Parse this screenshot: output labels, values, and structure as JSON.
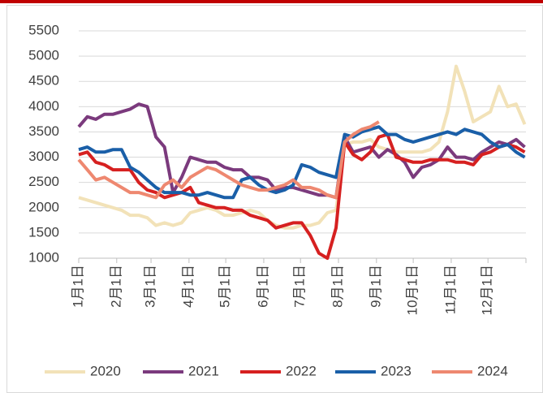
{
  "chart_data": {
    "type": "line",
    "x": [
      0,
      7,
      14,
      21,
      28,
      35,
      42,
      49,
      56,
      63,
      70,
      77,
      84,
      91,
      98,
      105,
      112,
      119,
      126,
      133,
      140,
      147,
      154,
      161,
      168,
      175,
      182,
      189,
      196,
      203,
      210,
      217,
      224,
      231,
      238,
      245,
      252,
      259,
      266,
      273,
      280,
      287,
      294,
      301,
      308,
      315,
      322,
      329,
      336,
      343,
      350,
      357,
      364
    ],
    "xlim": [
      0,
      365
    ],
    "xticks": [
      {
        "value": 0,
        "label": "1月1日"
      },
      {
        "value": 31,
        "label": "2月1日"
      },
      {
        "value": 59,
        "label": "3月1日"
      },
      {
        "value": 90,
        "label": "4月1日"
      },
      {
        "value": 120,
        "label": "5月1日"
      },
      {
        "value": 151,
        "label": "6月1日"
      },
      {
        "value": 181,
        "label": "7月1日"
      },
      {
        "value": 212,
        "label": "8月1日"
      },
      {
        "value": 243,
        "label": "9月1日"
      },
      {
        "value": 273,
        "label": "10月1日"
      },
      {
        "value": 304,
        "label": "11月1日"
      },
      {
        "value": 334,
        "label": "12月1日"
      }
    ],
    "ylim": [
      1000,
      5500
    ],
    "yticks": [
      1000,
      1500,
      2000,
      2500,
      3000,
      3500,
      4000,
      4500,
      5000,
      5500
    ],
    "grid": true,
    "legend": "bottom",
    "series": [
      {
        "name": "2020",
        "color": "#f2e2b8",
        "values": [
          2200,
          2150,
          2100,
          2050,
          2000,
          1950,
          1850,
          1850,
          1800,
          1650,
          1700,
          1650,
          1700,
          1900,
          1950,
          2000,
          1950,
          1850,
          1850,
          1900,
          1950,
          1900,
          1750,
          1650,
          1600,
          1600,
          1650,
          1650,
          1700,
          1900,
          1950,
          3250,
          3300,
          3300,
          3350,
          3200,
          3150,
          3100,
          3100,
          3100,
          3100,
          3150,
          3300,
          3900,
          4800,
          4300,
          3700,
          3800,
          3900,
          4400,
          4000,
          4050,
          3650
        ]
      },
      {
        "name": "2021",
        "color": "#7b3a7d",
        "values": [
          3600,
          3800,
          3750,
          3850,
          3850,
          3900,
          3950,
          4050,
          4000,
          3400,
          3200,
          2300,
          2600,
          3000,
          2950,
          2900,
          2900,
          2800,
          2750,
          2750,
          2600,
          2600,
          2550,
          2350,
          2400,
          2400,
          2350,
          2300,
          2250,
          2250,
          2200,
          3400,
          3100,
          3150,
          3200,
          3000,
          3150,
          3050,
          2900,
          2600,
          2800,
          2850,
          2950,
          3200,
          3000,
          3000,
          2950,
          3100,
          3200,
          3300,
          3250,
          3350,
          3200
        ]
      },
      {
        "name": "2022",
        "color": "#d62020",
        "values": [
          3050,
          3100,
          2900,
          2850,
          2750,
          2750,
          2750,
          2500,
          2350,
          2300,
          2200,
          2250,
          2300,
          2400,
          2100,
          2050,
          2000,
          2000,
          1950,
          1950,
          1850,
          1800,
          1750,
          1600,
          1650,
          1700,
          1700,
          1450,
          1100,
          1000,
          1600,
          3300,
          3050,
          2950,
          3100,
          3400,
          3450,
          3000,
          2950,
          2900,
          2900,
          2950,
          2950,
          2950,
          2900,
          2900,
          2850,
          3050,
          3100,
          3200,
          3250,
          3200,
          3100
        ]
      },
      {
        "name": "2023",
        "color": "#1a5fa8",
        "values": [
          3150,
          3200,
          3100,
          3100,
          3150,
          3150,
          2800,
          2700,
          2550,
          2400,
          2300,
          2300,
          2300,
          2250,
          2250,
          2300,
          2250,
          2200,
          2200,
          2550,
          2600,
          2450,
          2350,
          2300,
          2350,
          2450,
          2850,
          2800,
          2700,
          2650,
          2600,
          3450,
          3400,
          3500,
          3550,
          3600,
          3450,
          3450,
          3350,
          3300,
          3350,
          3400,
          3450,
          3500,
          3450,
          3550,
          3500,
          3450,
          3300,
          3200,
          3250,
          3100,
          3000
        ]
      },
      {
        "name": "2024",
        "color": "#ee8870",
        "values": [
          2950,
          2750,
          2550,
          2600,
          2500,
          2400,
          2300,
          2300,
          2250,
          2200,
          2450,
          2550,
          2400,
          2600,
          2700,
          2800,
          2750,
          2650,
          2550,
          2450,
          2400,
          2350,
          2350,
          2400,
          2450,
          2550,
          2400,
          2400,
          2350,
          2250,
          2200,
          3300,
          3450,
          3550,
          3600,
          3700,
          null,
          null,
          null,
          null,
          null,
          null,
          null,
          null,
          null,
          null,
          null,
          null,
          null,
          null,
          null,
          null,
          null
        ]
      }
    ]
  }
}
